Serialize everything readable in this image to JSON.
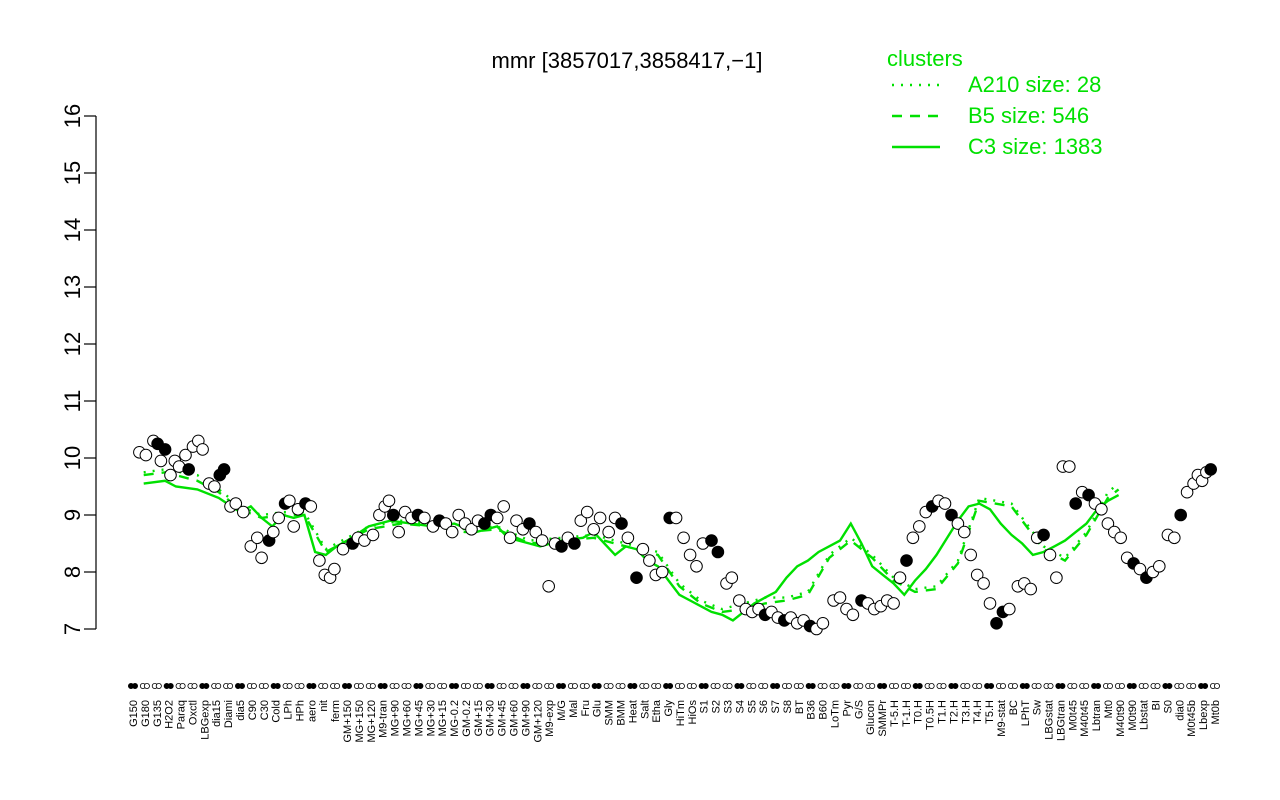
{
  "chart_data": {
    "type": "line",
    "title": "mmr [3857017,3858417,−1]",
    "xlabel": "",
    "ylabel": "",
    "ylim": [
      7,
      16
    ],
    "yticks": [
      7,
      8,
      9,
      10,
      11,
      12,
      13,
      14,
      15,
      16
    ],
    "grid": false,
    "legend": {
      "title": "clusters",
      "placement": "top-right",
      "entries": [
        {
          "label": "A210 size: 28",
          "style": "dotted"
        },
        {
          "label": "B5 size: 546",
          "style": "dashed"
        },
        {
          "label": "C3 size: 1383",
          "style": "solid"
        }
      ]
    },
    "colors": {
      "lines": "#00e000",
      "points": "#000000",
      "point_fill": "#ffffff"
    },
    "x_labels": [
      "G150",
      "G180",
      "G135",
      "H2O2",
      "Paraq",
      "Oxctl",
      "LBGexp",
      "dia15",
      "Diami",
      "dia5",
      "C90",
      "C30",
      "Cold",
      "LPh",
      "HPh",
      "aero",
      "nit",
      "ferm",
      "GM+150",
      "MG+150",
      "MG+120",
      "M9-tran",
      "MG+90",
      "MG+60",
      "MG+45",
      "MG+30",
      "MG+15",
      "MG-0.2",
      "GM-0.2",
      "GM+15",
      "GM+30",
      "GM+45",
      "GM+60",
      "GM+90",
      "GM+120",
      "M9-exp",
      "M/G",
      "Mal",
      "Fru",
      "Glu",
      "SMM",
      "BMM",
      "Heat",
      "Salt",
      "Etha",
      "Gly",
      "HiTm",
      "HiOs",
      "S1",
      "S2",
      "S3",
      "S4",
      "S5",
      "S6",
      "S7",
      "S8",
      "BT",
      "B36",
      "B60",
      "LoTm",
      "Pyr",
      "G/S",
      "Glucon",
      "SMMPr",
      "T-5.H",
      "T-1.H",
      "T0.H",
      "T0.5H",
      "T1.H",
      "T2.H",
      "T3.H",
      "T4.H",
      "T5.H",
      "M9-stat",
      "BC",
      "LPhT",
      "Sw",
      "LBGstat",
      "LBGtran",
      "M0t45",
      "M40t45",
      "Lbtran",
      "Mt0",
      "M40t90",
      "M0t90",
      "Lbstat",
      "BI",
      "S0",
      "dia0",
      "M0t45b",
      "Lbexp",
      "Mt0b"
    ],
    "series": [
      {
        "name": "A210 size: 28",
        "style": "dotted",
        "points": [
          [
            1,
            9.75
          ],
          [
            3,
            9.8
          ],
          [
            6,
            9.7
          ],
          [
            8,
            9.45
          ],
          [
            10,
            9.15
          ],
          [
            12,
            9.0
          ],
          [
            14,
            9.05
          ],
          [
            16,
            9.05
          ],
          [
            18,
            8.4
          ],
          [
            20,
            8.6
          ],
          [
            22,
            8.8
          ],
          [
            25,
            8.9
          ],
          [
            28,
            8.85
          ],
          [
            31,
            8.75
          ],
          [
            34,
            8.8
          ],
          [
            37,
            8.55
          ],
          [
            40,
            8.6
          ],
          [
            43,
            8.65
          ],
          [
            46,
            8.5
          ],
          [
            49,
            8.35
          ],
          [
            51,
            7.8
          ],
          [
            53,
            7.5
          ],
          [
            55,
            7.35
          ],
          [
            57,
            7.45
          ],
          [
            59,
            7.55
          ],
          [
            61,
            7.55
          ],
          [
            63,
            7.65
          ],
          [
            65,
            8.3
          ],
          [
            67,
            8.6
          ],
          [
            69,
            8.3
          ],
          [
            71,
            7.9
          ],
          [
            73,
            7.7
          ],
          [
            75,
            7.75
          ],
          [
            77,
            8.2
          ],
          [
            79,
            9.3
          ],
          [
            82,
            9.2
          ],
          [
            85,
            8.45
          ],
          [
            87,
            8.25
          ],
          [
            89,
            8.7
          ],
          [
            91,
            9.4
          ],
          [
            92,
            9.55
          ]
        ]
      },
      {
        "name": "B5 size: 546",
        "style": "dashed",
        "points": [
          [
            1,
            9.7
          ],
          [
            3,
            9.75
          ],
          [
            6,
            9.6
          ],
          [
            8,
            9.4
          ],
          [
            10,
            9.1
          ],
          [
            12,
            8.95
          ],
          [
            14,
            9.0
          ],
          [
            16,
            9.0
          ],
          [
            18,
            8.35
          ],
          [
            20,
            8.55
          ],
          [
            22,
            8.75
          ],
          [
            25,
            8.85
          ],
          [
            28,
            8.8
          ],
          [
            31,
            8.7
          ],
          [
            34,
            8.75
          ],
          [
            37,
            8.5
          ],
          [
            40,
            8.55
          ],
          [
            43,
            8.6
          ],
          [
            46,
            8.45
          ],
          [
            49,
            8.3
          ],
          [
            51,
            7.75
          ],
          [
            53,
            7.45
          ],
          [
            55,
            7.3
          ],
          [
            57,
            7.35
          ],
          [
            59,
            7.45
          ],
          [
            61,
            7.5
          ],
          [
            63,
            7.6
          ],
          [
            65,
            8.25
          ],
          [
            67,
            8.55
          ],
          [
            69,
            8.25
          ],
          [
            71,
            7.85
          ],
          [
            73,
            7.65
          ],
          [
            75,
            7.7
          ],
          [
            77,
            8.15
          ],
          [
            79,
            9.25
          ],
          [
            82,
            9.15
          ],
          [
            85,
            8.4
          ],
          [
            87,
            8.2
          ],
          [
            89,
            8.65
          ],
          [
            91,
            9.3
          ],
          [
            92,
            9.45
          ]
        ]
      },
      {
        "name": "C3 size: 1383",
        "style": "solid",
        "points": [
          [
            1,
            9.55
          ],
          [
            3,
            9.6
          ],
          [
            4,
            9.5
          ],
          [
            6,
            9.45
          ],
          [
            8,
            9.3
          ],
          [
            10,
            9.05
          ],
          [
            11,
            9.15
          ],
          [
            12,
            8.95
          ],
          [
            13,
            8.8
          ],
          [
            14,
            9.0
          ],
          [
            15,
            8.95
          ],
          [
            16,
            9.0
          ],
          [
            17,
            8.35
          ],
          [
            18,
            8.3
          ],
          [
            19,
            8.45
          ],
          [
            20,
            8.55
          ],
          [
            22,
            8.8
          ],
          [
            24,
            8.9
          ],
          [
            26,
            8.85
          ],
          [
            28,
            8.8
          ],
          [
            30,
            8.85
          ],
          [
            32,
            8.7
          ],
          [
            34,
            8.8
          ],
          [
            35,
            8.6
          ],
          [
            37,
            8.5
          ],
          [
            38,
            8.45
          ],
          [
            40,
            8.55
          ],
          [
            42,
            8.6
          ],
          [
            43,
            8.7
          ],
          [
            44,
            8.5
          ],
          [
            45,
            8.3
          ],
          [
            46,
            8.45
          ],
          [
            47,
            8.4
          ],
          [
            48,
            8.2
          ],
          [
            49,
            8.1
          ],
          [
            50,
            7.85
          ],
          [
            51,
            7.6
          ],
          [
            52,
            7.5
          ],
          [
            53,
            7.4
          ],
          [
            54,
            7.3
          ],
          [
            55,
            7.25
          ],
          [
            56,
            7.15
          ],
          [
            57,
            7.3
          ],
          [
            58,
            7.45
          ],
          [
            59,
            7.55
          ],
          [
            60,
            7.65
          ],
          [
            61,
            7.9
          ],
          [
            62,
            8.1
          ],
          [
            63,
            8.2
          ],
          [
            64,
            8.35
          ],
          [
            66,
            8.55
          ],
          [
            67,
            8.85
          ],
          [
            68,
            8.5
          ],
          [
            69,
            8.1
          ],
          [
            70,
            7.95
          ],
          [
            71,
            7.8
          ],
          [
            72,
            7.6
          ],
          [
            73,
            7.85
          ],
          [
            74,
            8.05
          ],
          [
            75,
            8.3
          ],
          [
            76,
            8.6
          ],
          [
            77,
            8.9
          ],
          [
            78,
            9.15
          ],
          [
            79,
            9.2
          ],
          [
            80,
            9.1
          ],
          [
            81,
            8.85
          ],
          [
            82,
            8.65
          ],
          [
            83,
            8.5
          ],
          [
            84,
            8.3
          ],
          [
            85,
            8.35
          ],
          [
            86,
            8.45
          ],
          [
            87,
            8.55
          ],
          [
            88,
            8.7
          ],
          [
            89,
            8.85
          ],
          [
            90,
            9.1
          ],
          [
            91,
            9.25
          ],
          [
            92,
            9.35
          ]
        ]
      }
    ],
    "points": [
      [
        0.6,
        10.1
      ],
      [
        1.2,
        10.05
      ],
      [
        1.9,
        10.3
      ],
      [
        2.3,
        10.25
      ],
      [
        2.6,
        9.95
      ],
      [
        3.0,
        10.15
      ],
      [
        3.5,
        9.7
      ],
      [
        3.9,
        9.95
      ],
      [
        4.3,
        9.85
      ],
      [
        4.9,
        10.05
      ],
      [
        5.2,
        9.8
      ],
      [
        5.6,
        10.2
      ],
      [
        6.1,
        10.3
      ],
      [
        6.5,
        10.15
      ],
      [
        7.1,
        9.55
      ],
      [
        7.6,
        9.5
      ],
      [
        8.1,
        9.7
      ],
      [
        8.5,
        9.8
      ],
      [
        9.1,
        9.15
      ],
      [
        9.6,
        9.2
      ],
      [
        10.3,
        9.05
      ],
      [
        11.0,
        8.45
      ],
      [
        11.6,
        8.6
      ],
      [
        12.0,
        8.25
      ],
      [
        12.7,
        8.55
      ],
      [
        13.1,
        8.7
      ],
      [
        13.6,
        8.95
      ],
      [
        14.2,
        9.2
      ],
      [
        14.6,
        9.25
      ],
      [
        15.0,
        8.8
      ],
      [
        15.4,
        9.1
      ],
      [
        16.1,
        9.2
      ],
      [
        16.6,
        9.15
      ],
      [
        17.4,
        8.2
      ],
      [
        17.9,
        7.95
      ],
      [
        18.4,
        7.9
      ],
      [
        18.8,
        8.05
      ],
      [
        19.6,
        8.4
      ],
      [
        20.5,
        8.5
      ],
      [
        21.0,
        8.6
      ],
      [
        21.6,
        8.55
      ],
      [
        22.4,
        8.65
      ],
      [
        23.0,
        9.0
      ],
      [
        23.5,
        9.15
      ],
      [
        23.9,
        9.25
      ],
      [
        24.3,
        9.0
      ],
      [
        24.8,
        8.7
      ],
      [
        25.4,
        9.05
      ],
      [
        26.0,
        8.95
      ],
      [
        26.6,
        9.0
      ],
      [
        27.2,
        8.95
      ],
      [
        28.0,
        8.8
      ],
      [
        28.6,
        8.9
      ],
      [
        29.2,
        8.85
      ],
      [
        29.8,
        8.7
      ],
      [
        30.4,
        9.0
      ],
      [
        31.0,
        8.85
      ],
      [
        31.6,
        8.75
      ],
      [
        32.2,
        8.9
      ],
      [
        32.8,
        8.85
      ],
      [
        33.4,
        9.0
      ],
      [
        34.0,
        8.95
      ],
      [
        34.6,
        9.15
      ],
      [
        35.2,
        8.6
      ],
      [
        35.8,
        8.9
      ],
      [
        36.4,
        8.75
      ],
      [
        37.0,
        8.85
      ],
      [
        37.6,
        8.7
      ],
      [
        38.2,
        8.55
      ],
      [
        38.8,
        7.75
      ],
      [
        39.4,
        8.5
      ],
      [
        40.0,
        8.45
      ],
      [
        40.6,
        8.6
      ],
      [
        41.2,
        8.5
      ],
      [
        41.8,
        8.9
      ],
      [
        42.4,
        9.05
      ],
      [
        43.0,
        8.75
      ],
      [
        43.6,
        8.95
      ],
      [
        44.4,
        8.7
      ],
      [
        45.0,
        8.95
      ],
      [
        45.6,
        8.85
      ],
      [
        46.2,
        8.6
      ],
      [
        47.0,
        7.9
      ],
      [
        47.6,
        8.4
      ],
      [
        48.2,
        8.2
      ],
      [
        48.8,
        7.95
      ],
      [
        49.4,
        8.0
      ],
      [
        50.1,
        8.95
      ],
      [
        50.7,
        8.95
      ],
      [
        51.4,
        8.6
      ],
      [
        52.0,
        8.3
      ],
      [
        52.6,
        8.1
      ],
      [
        53.2,
        8.5
      ],
      [
        54.0,
        8.55
      ],
      [
        54.6,
        8.35
      ],
      [
        55.4,
        7.8
      ],
      [
        55.9,
        7.9
      ],
      [
        56.6,
        7.5
      ],
      [
        57.2,
        7.35
      ],
      [
        57.8,
        7.3
      ],
      [
        58.4,
        7.35
      ],
      [
        59.0,
        7.25
      ],
      [
        59.6,
        7.3
      ],
      [
        60.2,
        7.2
      ],
      [
        60.8,
        7.15
      ],
      [
        61.4,
        7.2
      ],
      [
        62.0,
        7.1
      ],
      [
        62.6,
        7.15
      ],
      [
        63.2,
        7.05
      ],
      [
        63.8,
        7.0
      ],
      [
        64.4,
        7.1
      ],
      [
        65.4,
        7.5
      ],
      [
        66.0,
        7.55
      ],
      [
        66.6,
        7.35
      ],
      [
        67.2,
        7.25
      ],
      [
        68.0,
        7.5
      ],
      [
        68.6,
        7.45
      ],
      [
        69.2,
        7.35
      ],
      [
        69.8,
        7.4
      ],
      [
        70.4,
        7.5
      ],
      [
        71.0,
        7.45
      ],
      [
        71.6,
        7.9
      ],
      [
        72.2,
        8.2
      ],
      [
        72.8,
        8.6
      ],
      [
        73.4,
        8.8
      ],
      [
        74.0,
        9.05
      ],
      [
        74.6,
        9.15
      ],
      [
        75.2,
        9.25
      ],
      [
        75.8,
        9.2
      ],
      [
        76.4,
        9.0
      ],
      [
        77.0,
        8.85
      ],
      [
        77.6,
        8.7
      ],
      [
        78.2,
        8.3
      ],
      [
        78.8,
        7.95
      ],
      [
        79.4,
        7.8
      ],
      [
        80.0,
        7.45
      ],
      [
        80.6,
        7.1
      ],
      [
        81.2,
        7.3
      ],
      [
        81.8,
        7.35
      ],
      [
        82.6,
        7.75
      ],
      [
        83.2,
        7.8
      ],
      [
        83.8,
        7.7
      ],
      [
        84.4,
        8.6
      ],
      [
        85.0,
        8.65
      ],
      [
        85.6,
        8.3
      ],
      [
        86.2,
        7.9
      ],
      [
        86.8,
        9.85
      ],
      [
        87.4,
        9.85
      ],
      [
        88.0,
        9.2
      ],
      [
        88.6,
        9.4
      ],
      [
        89.2,
        9.35
      ],
      [
        89.8,
        9.2
      ],
      [
        90.4,
        9.1
      ],
      [
        91.0,
        8.85
      ],
      [
        91.6,
        8.7
      ],
      [
        92.2,
        8.6
      ],
      [
        92.8,
        8.25
      ],
      [
        93.4,
        8.15
      ],
      [
        94.0,
        8.05
      ],
      [
        94.6,
        7.9
      ],
      [
        95.2,
        8.0
      ],
      [
        95.8,
        8.1
      ],
      [
        96.6,
        8.65
      ],
      [
        97.2,
        8.6
      ],
      [
        97.8,
        9.0
      ],
      [
        98.4,
        9.4
      ],
      [
        99.0,
        9.55
      ],
      [
        99.4,
        9.7
      ],
      [
        99.8,
        9.6
      ],
      [
        100.2,
        9.75
      ],
      [
        100.6,
        9.8
      ]
    ]
  }
}
